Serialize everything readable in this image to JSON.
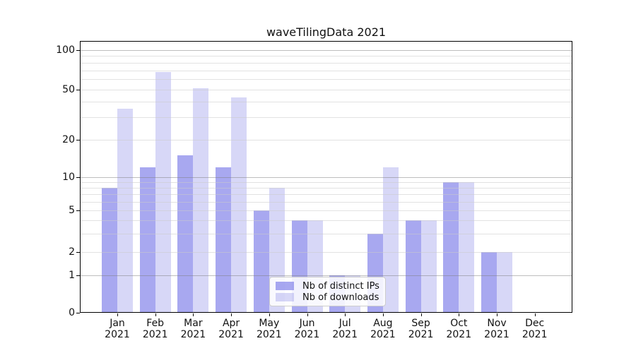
{
  "figure": {
    "title": "waveTilingData 2021",
    "background": "#ffffff"
  },
  "chart_data": {
    "type": "bar",
    "title": "waveTilingData 2021",
    "categories": [
      "Jan",
      "Feb",
      "Mar",
      "Apr",
      "May",
      "Jun",
      "Jul",
      "Aug",
      "Sep",
      "Oct",
      "Nov",
      "Dec"
    ],
    "category_year": "2021",
    "series": [
      {
        "name": "Nb of distinct IPs",
        "color": "rgba(122,122,232,0.65)",
        "values": [
          8,
          12,
          15,
          12,
          5,
          4,
          1,
          3,
          4,
          9,
          2,
          0
        ]
      },
      {
        "name": "Nb of downloads",
        "color": "rgba(122,122,230,0.30)",
        "values": [
          35,
          68,
          51,
          43,
          8,
          4,
          1,
          12,
          4,
          9,
          2,
          0
        ]
      }
    ],
    "y_axis": {
      "scale": "log-like",
      "tick_labels": [
        "100",
        "50",
        "20",
        "10",
        "5",
        "2",
        "1",
        "0"
      ],
      "tick_values": [
        100,
        50,
        20,
        10,
        5,
        2,
        1,
        0
      ],
      "major_grid_values": [
        1,
        10,
        100
      ],
      "minor_grid_values": [
        2,
        3,
        4,
        5,
        6,
        7,
        8,
        9,
        20,
        30,
        40,
        50,
        60,
        70,
        80,
        90
      ],
      "ylim": [
        0,
        100
      ]
    },
    "grid": "horizontal",
    "legend_position": "lower-center-inside"
  },
  "colors": {
    "major_gridline": "rgba(125,125,125,0.50)",
    "minor_gridline": "rgba(203,203,203,0.55)",
    "axis_line": "#000000",
    "text": "#111111",
    "legend_border": "#cccccc",
    "legend_background": "rgba(255,255,255,0.85)"
  }
}
